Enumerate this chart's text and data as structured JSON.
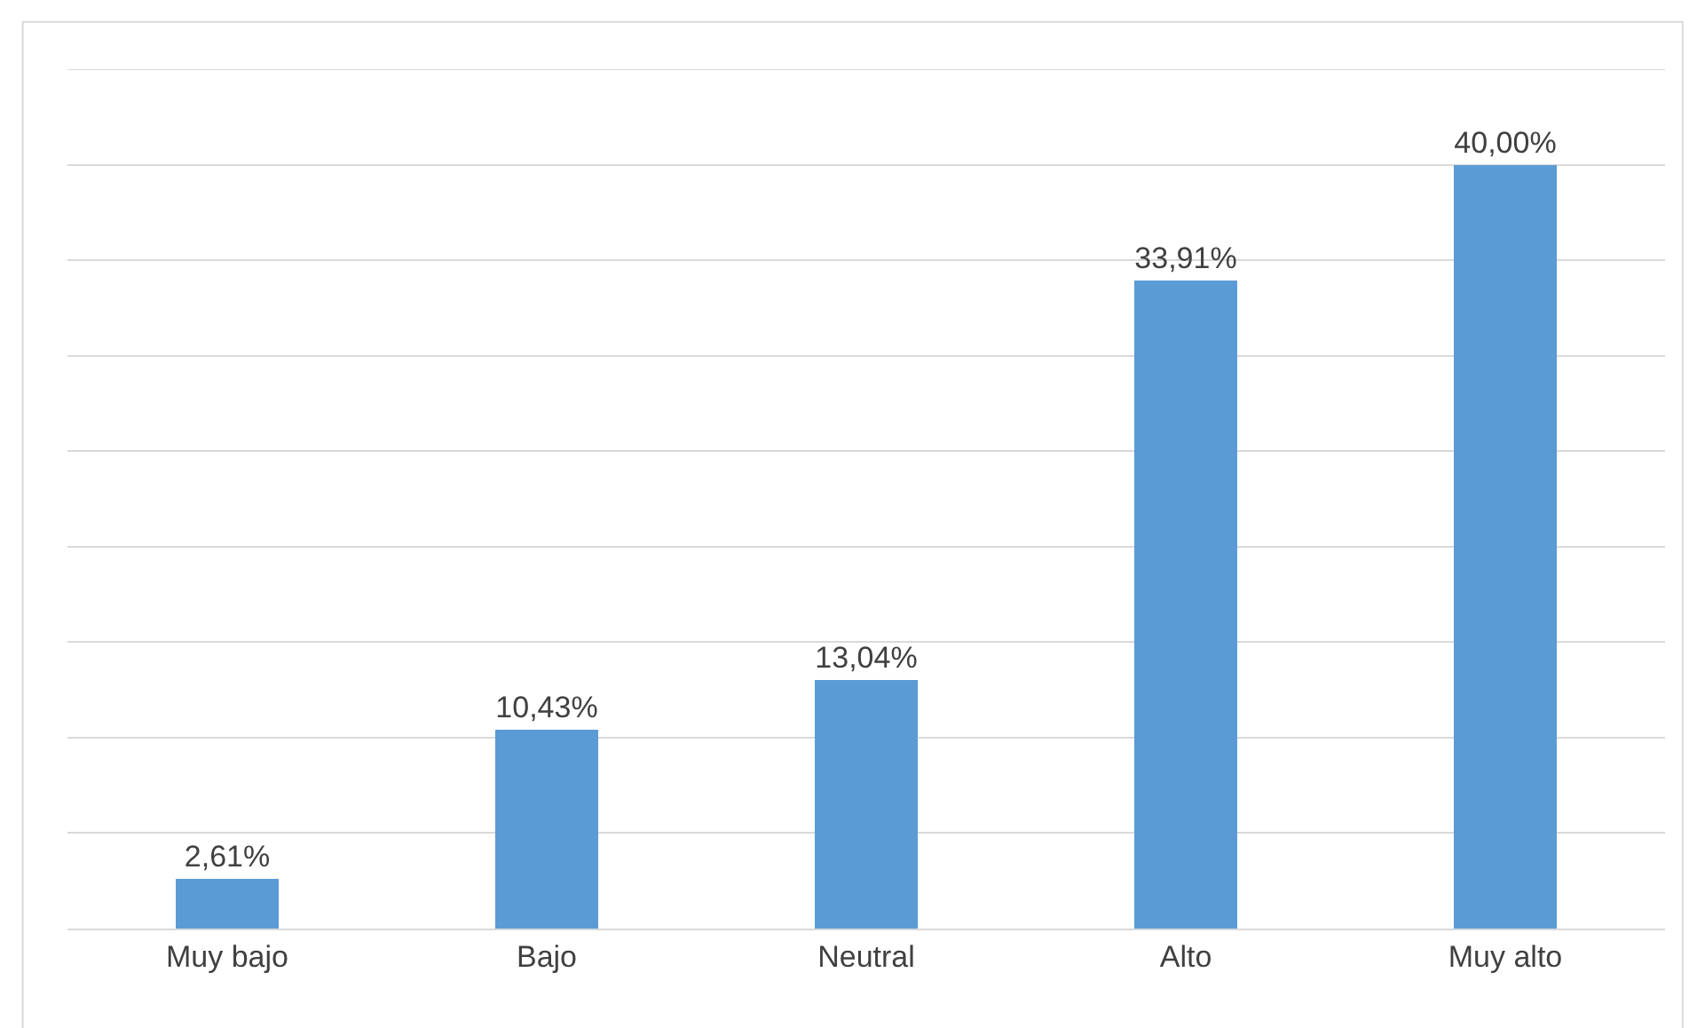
{
  "chart_data": {
    "type": "bar",
    "categories": [
      "Muy bajo",
      "Bajo",
      "Neutral",
      "Alto",
      "Muy alto"
    ],
    "values": [
      2.61,
      10.43,
      13.04,
      33.91,
      40.0
    ],
    "value_labels": [
      "2,61%",
      "10,43%",
      "13,04%",
      "33,91%",
      "40,00%"
    ],
    "color": "#5b9bd5",
    "ylim": [
      0,
      45
    ],
    "yticks": [
      {
        "value": 0,
        "label": null
      },
      {
        "value": 5,
        "label": null
      },
      {
        "value": 10,
        "label": null
      },
      {
        "value": 15,
        "label": null
      },
      {
        "value": 20,
        "label": null
      },
      {
        "value": 25,
        "label": null
      },
      {
        "value": 30,
        "label": null
      },
      {
        "value": 35,
        "label": null
      },
      {
        "value": 40,
        "label": null
      },
      {
        "value": 45,
        "label": null
      }
    ],
    "grid": "y",
    "tick_labels": "x",
    "legend": false
  }
}
